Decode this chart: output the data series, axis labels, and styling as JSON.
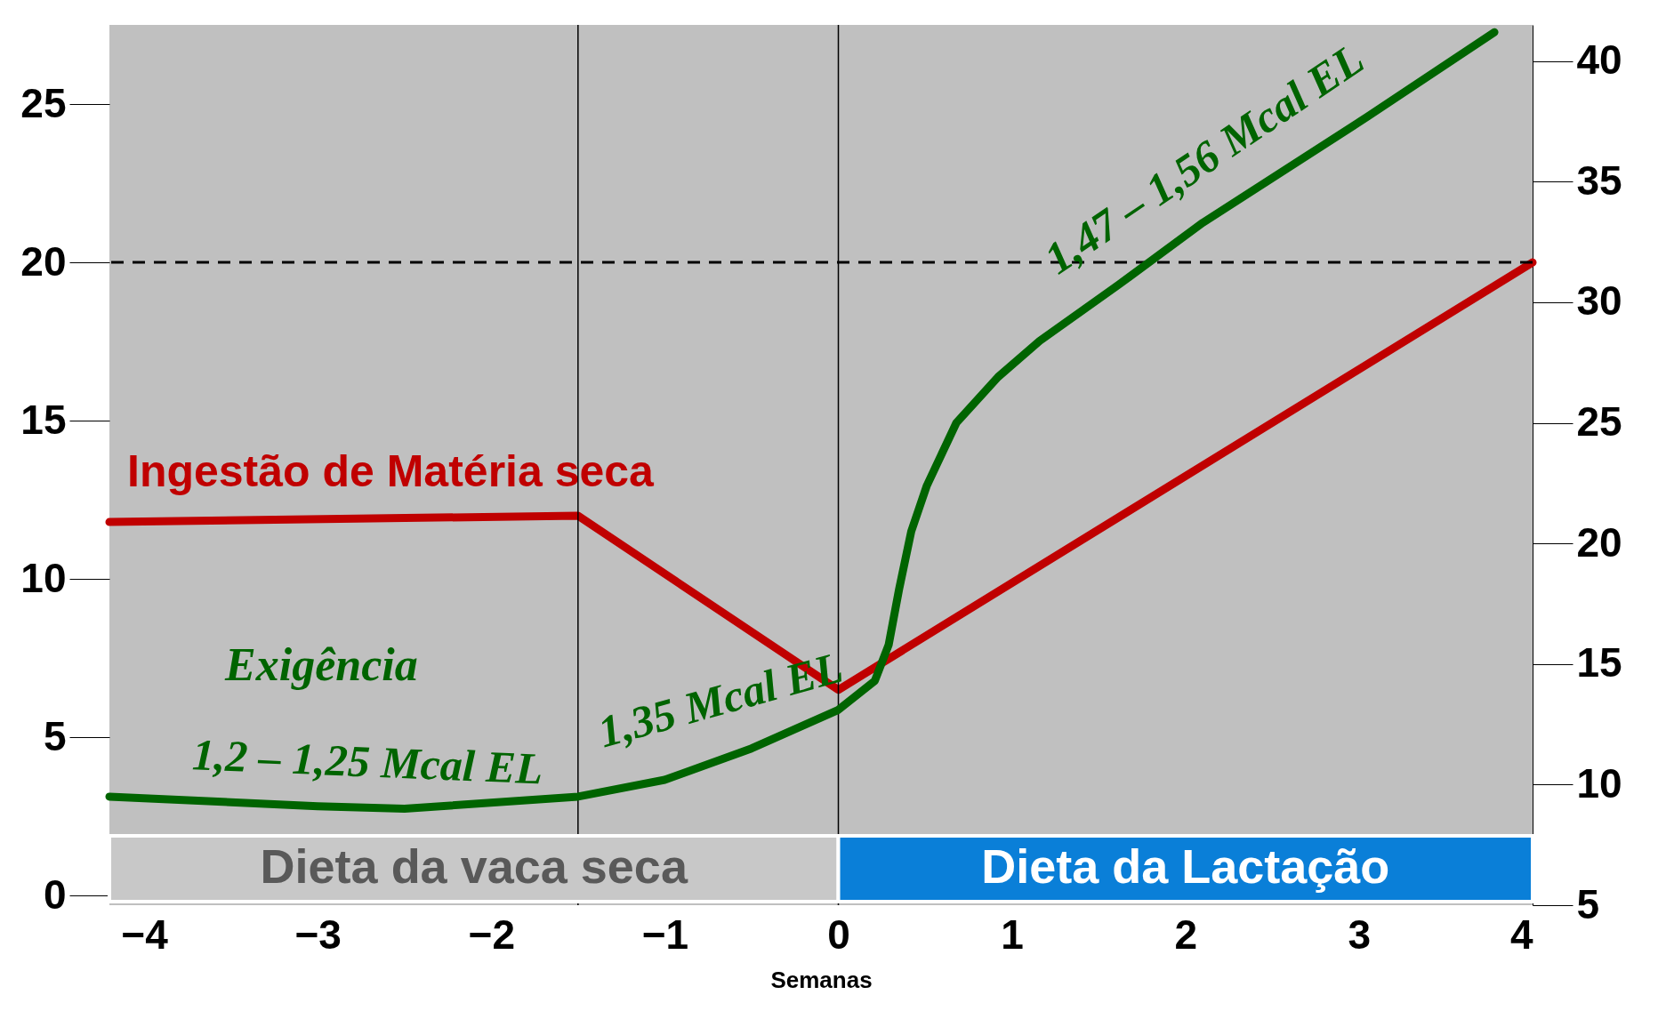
{
  "chart_data": {
    "type": "line",
    "xlabel": "Semanas",
    "xlim": [
      -4.2,
      4
    ],
    "xticks": [
      -4,
      -3,
      -2,
      -1,
      0,
      1,
      2,
      3,
      4
    ],
    "ylim": [
      -0.3,
      27.5
    ],
    "yticks": [
      0,
      5,
      10,
      15,
      20,
      25
    ],
    "y2lim": [
      5,
      41.5
    ],
    "y2ticks": [
      5,
      10,
      15,
      20,
      25,
      30,
      35,
      40
    ],
    "grid": false,
    "legend": false,
    "marker": "none",
    "line_style": "solid",
    "series": [
      {
        "name": "Ingestão de Matéria seca",
        "color": "#c00000",
        "x": [
          -4.2,
          -1.5,
          0,
          4
        ],
        "values": [
          11.8,
          12.0,
          6.5,
          20
        ]
      },
      {
        "name": "Exigência",
        "color": "#006400",
        "axis": "y2",
        "x": [
          -4.2,
          -3,
          -2.5,
          -1.5,
          -1,
          -0.5,
          0,
          0.21,
          0.29,
          0.35,
          0.42,
          0.51,
          0.68,
          0.92,
          1.16,
          1.61,
          2.1,
          3.05,
          3.78
        ],
        "values": [
          9.5,
          9.1,
          9.0,
          9.5,
          10.2,
          11.5,
          13.1,
          14.3,
          15.8,
          18.1,
          20.5,
          22.4,
          25.0,
          26.9,
          28.4,
          30.7,
          33.3,
          37.7,
          41.2
        ]
      }
    ],
    "ref_lines": [
      {
        "axis": "x",
        "value": -1.5,
        "color": "#000000",
        "line_style": "solid"
      },
      {
        "axis": "x",
        "value": 0,
        "color": "#000000",
        "line_style": "solid"
      },
      {
        "axis": "y",
        "value": 20,
        "color": "#000000",
        "line_style": "dashed"
      }
    ],
    "bands": [
      {
        "axis": "x",
        "from": -4.2,
        "to": 0,
        "label": "Dieta da vaca seca",
        "color": "#c8c8c8"
      },
      {
        "axis": "x",
        "from": 0,
        "to": 4,
        "label": "Dieta da Lactação",
        "color": "#0a7fd8"
      }
    ],
    "annotations": [
      "1,2 – 1,25 Mcal EL",
      "1,35 Mcal EL",
      "1,47 – 1,56 Mcal EL"
    ]
  }
}
